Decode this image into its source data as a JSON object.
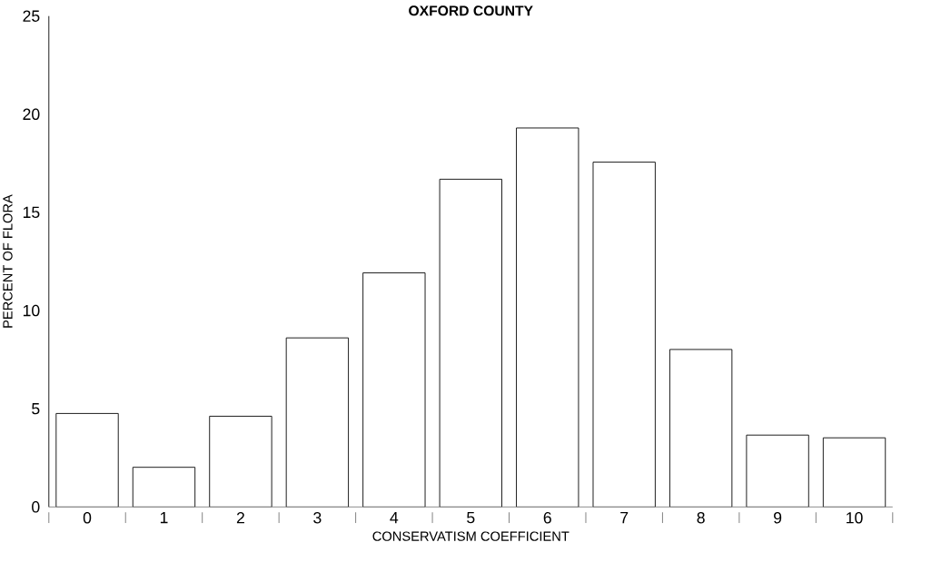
{
  "chart_data": {
    "type": "bar",
    "title": "OXFORD COUNTY",
    "xlabel": "CONSERVATISM COEFFICIENT",
    "ylabel": "PERCENT OF FLORA",
    "categories": [
      "0",
      "1",
      "2",
      "3",
      "4",
      "5",
      "6",
      "7",
      "8",
      "9",
      "10"
    ],
    "values": [
      4.76,
      2.02,
      4.62,
      8.61,
      11.92,
      16.69,
      19.3,
      17.56,
      8.02,
      3.66,
      3.52
    ],
    "color": "#ffffff",
    "ylim": [
      0,
      25
    ],
    "yticks": [
      0,
      5,
      10,
      15,
      20,
      25
    ],
    "grid": false
  }
}
